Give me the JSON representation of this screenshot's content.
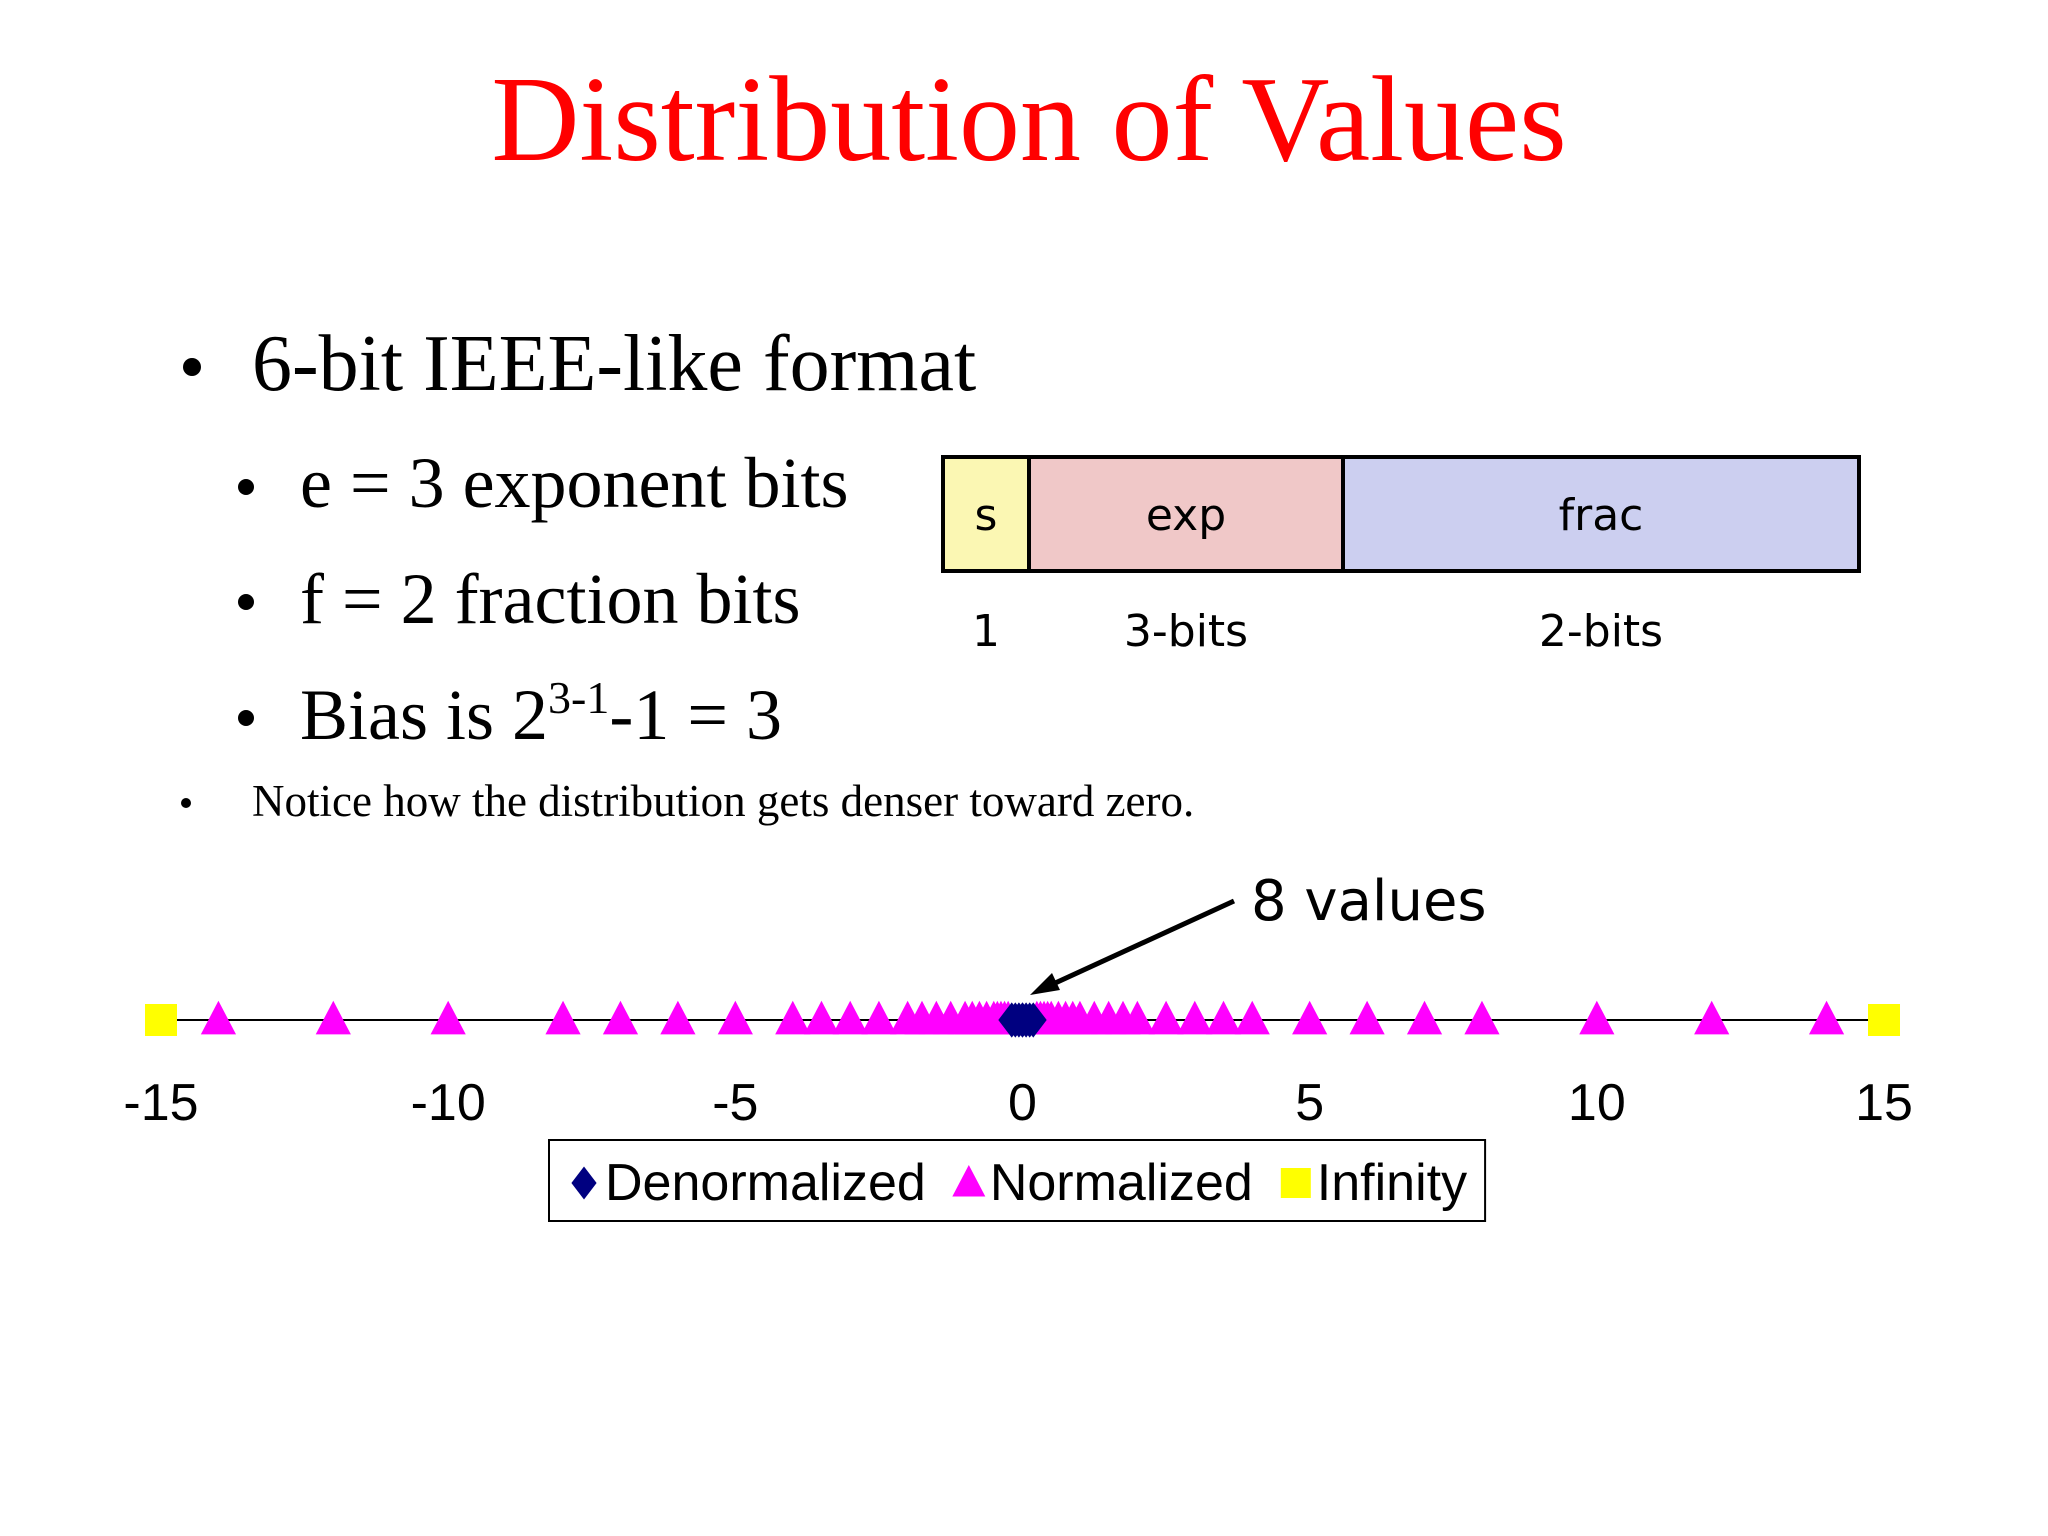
{
  "title": "Distribution of Values",
  "bullets": {
    "main": "6-bit IEEE-like format",
    "sub": [
      "e = 3 exponent bits",
      "f = 2 fraction bits"
    ],
    "bias": {
      "before": "Bias is 2",
      "sup": "3-1",
      "after": "-1 = 3"
    },
    "note": "Notice how the distribution gets denser toward zero."
  },
  "format": {
    "fields": [
      "s",
      "exp",
      "frac"
    ],
    "widths": [
      "1",
      "3-bits",
      "2-bits"
    ]
  },
  "chart_data": {
    "type": "scatter",
    "annotation": "8 values",
    "xlim": [
      -15,
      15
    ],
    "xticks": [
      -15,
      -10,
      -5,
      0,
      5,
      10,
      15
    ],
    "series": [
      {
        "name": "Denormalized",
        "color": "#000080",
        "marker": "diamond",
        "values": [
          -0.1875,
          -0.125,
          -0.0625,
          0,
          0,
          0.0625,
          0.125,
          0.1875
        ]
      },
      {
        "name": "Normalized",
        "color": "#ff00ff",
        "marker": "triangle",
        "values": [
          -14,
          -12,
          -10,
          -8,
          -7,
          -6,
          -5,
          -4,
          -3.5,
          -3,
          -2.5,
          -2,
          -1.75,
          -1.5,
          -1.25,
          -1,
          -0.875,
          -0.75,
          -0.625,
          -0.5,
          -0.4375,
          -0.375,
          -0.3125,
          -0.25,
          0.25,
          0.3125,
          0.375,
          0.4375,
          0.5,
          0.625,
          0.75,
          0.875,
          1,
          1.25,
          1.5,
          1.75,
          2,
          2.5,
          3,
          3.5,
          4,
          5,
          6,
          7,
          8,
          10,
          12,
          14
        ]
      },
      {
        "name": "Infinity",
        "color": "#ffff00",
        "marker": "square",
        "values": [
          -15,
          15
        ]
      }
    ]
  }
}
